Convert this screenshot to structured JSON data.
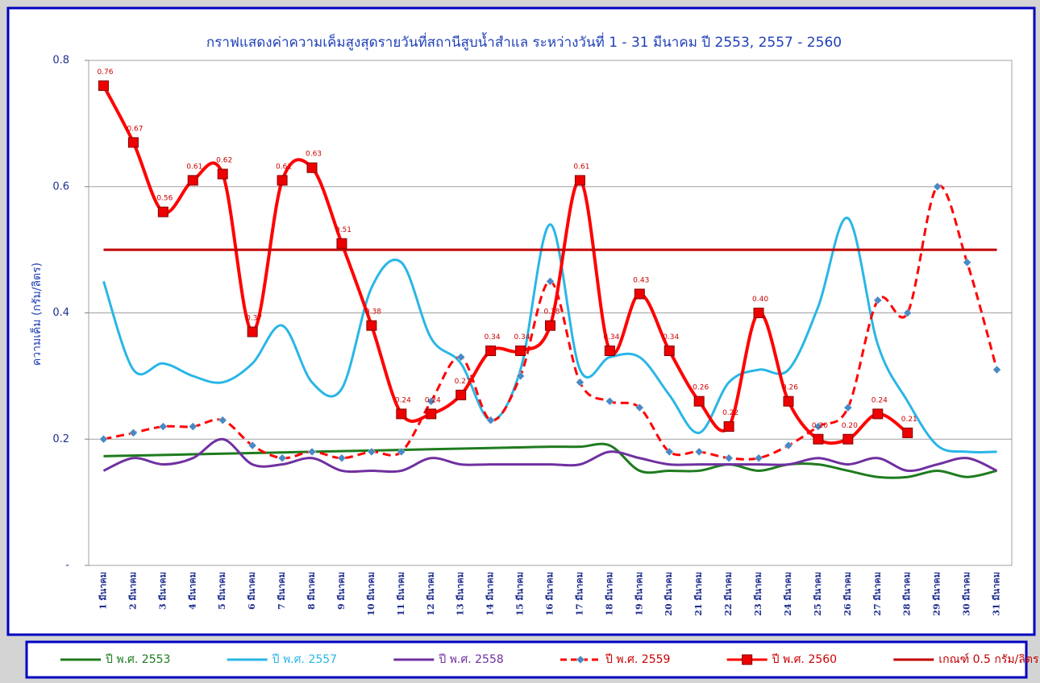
{
  "chart_data": {
    "type": "line",
    "title": "กราฟแสดงค่าความเค็มสูงสุดรายวันที่สถานีสูบน้ำสำแล  ระหว่างวันที่ 1 - 31 มีนาคม ปี 2553, 2557 - 2560",
    "y_label": "ความเค็ม (กรัม/ลิตร)",
    "categories": [
      "1 มีนาคม",
      "2 มีนาคม",
      "3 มีนาคม",
      "4 มีนาคม",
      "5 มีนาคม",
      "6 มีนาคม",
      "7 มีนาคม",
      "8 มีนาคม",
      "9 มีนาคม",
      "10 มีนาคม",
      "11 มีนาคม",
      "12 มีนาคม",
      "13 มีนาคม",
      "14 มีนาคม",
      "15 มีนาคม",
      "16 มีนาคม",
      "17 มีนาคม",
      "18 มีนาคม",
      "19 มีนาคม",
      "20 มีนาคม",
      "21 มีนาคม",
      "22 มีนาคม",
      "23 มีนาคม",
      "24 มีนาคม",
      "25 มีนาคม",
      "26 มีนาคม",
      "27 มีนาคม",
      "28 มีนาคม",
      "29 มีนาคม",
      "30 มีนาคม",
      "31 มีนาคม"
    ],
    "ylim": [
      0,
      0.8
    ],
    "yticks": [
      {
        "value": 0,
        "label": "-"
      },
      0.2,
      0.4,
      0.6,
      0.8
    ],
    "grid": true,
    "legend": "bottom",
    "smooth": true,
    "series": [
      {
        "name": "ปี พ.ศ. 2553",
        "color": "#1e7b1e",
        "values": [
          0.173,
          0.174,
          0.175,
          0.176,
          0.177,
          0.178,
          0.179,
          0.18,
          0.181,
          0.182,
          0.183,
          0.184,
          0.185,
          0.186,
          0.187,
          0.188,
          0.188,
          0.19,
          0.15,
          0.15,
          0.15,
          0.16,
          0.15,
          0.16,
          0.16,
          0.15,
          0.14,
          0.14,
          0.15,
          0.14,
          0.15
        ]
      },
      {
        "name": "ปี พ.ศ. 2557",
        "color": "#29b6e6",
        "values": [
          0.45,
          0.31,
          0.32,
          0.3,
          0.29,
          0.32,
          0.38,
          0.29,
          0.28,
          0.44,
          0.48,
          0.36,
          0.32,
          0.23,
          0.31,
          0.54,
          0.31,
          0.33,
          0.33,
          0.27,
          0.21,
          0.29,
          0.31,
          0.31,
          0.41,
          0.55,
          0.35,
          0.26,
          0.19,
          0.18,
          0.18
        ]
      },
      {
        "name": "ปี พ.ศ. 2558",
        "color": "#7030a0",
        "values": [
          0.15,
          0.17,
          0.16,
          0.17,
          0.2,
          0.16,
          0.16,
          0.17,
          0.15,
          0.15,
          0.15,
          0.17,
          0.16,
          0.16,
          0.16,
          0.16,
          0.16,
          0.18,
          0.17,
          0.16,
          0.16,
          0.16,
          0.16,
          0.16,
          0.17,
          0.16,
          0.17,
          0.15,
          0.16,
          0.17,
          0.15
        ]
      },
      {
        "name": "ปี พ.ศ. 2559",
        "color": "#ff0000",
        "dash": true,
        "marker": "diamond",
        "marker_color": "#4a8ac4",
        "values": [
          0.2,
          0.21,
          0.22,
          0.22,
          0.23,
          0.19,
          0.17,
          0.18,
          0.17,
          0.18,
          0.18,
          0.26,
          0.33,
          0.23,
          0.3,
          0.45,
          0.29,
          0.26,
          0.25,
          0.18,
          0.18,
          0.17,
          0.17,
          0.19,
          0.22,
          0.25,
          0.42,
          0.4,
          0.6,
          0.48,
          0.31
        ]
      },
      {
        "name": "ปี พ.ศ. 2560",
        "color": "#ff0000",
        "marker": "square",
        "marker_color": "#ee0000",
        "values": [
          0.76,
          0.67,
          0.56,
          0.61,
          0.62,
          0.37,
          0.61,
          0.63,
          0.51,
          0.38,
          0.24,
          0.24,
          0.27,
          0.34,
          0.34,
          0.38,
          0.61,
          0.34,
          0.43,
          0.34,
          0.26,
          0.22,
          0.4,
          0.26,
          0.2,
          0.2,
          0.24,
          0.21,
          null,
          null,
          null
        ],
        "value_labels": [
          "0.76",
          "0.67",
          "0.56",
          "0.61",
          "0.62",
          "0.37",
          "0.61",
          "0.63",
          "0.51",
          "0.38",
          "0.24",
          "0.24",
          "0.27",
          "0.34",
          "0.34",
          "0.38",
          "0.61",
          "0.34",
          "0.43",
          "0.34",
          "0.26",
          "0.22",
          "0.40",
          "0.26",
          "0.20",
          "0.20",
          "0.24",
          "0.21",
          null,
          null,
          null
        ]
      },
      {
        "name": "เกณฑ์ 0.5 กรัม/ลิตร",
        "color": "#c00000",
        "values": [
          0.5,
          0.5,
          0.5,
          0.5,
          0.5,
          0.5,
          0.5,
          0.5,
          0.5,
          0.5,
          0.5,
          0.5,
          0.5,
          0.5,
          0.5,
          0.5,
          0.5,
          0.5,
          0.5,
          0.5,
          0.5,
          0.5,
          0.5,
          0.5,
          0.5,
          0.5,
          0.5,
          0.5,
          0.5,
          0.5,
          0.5
        ]
      }
    ]
  }
}
